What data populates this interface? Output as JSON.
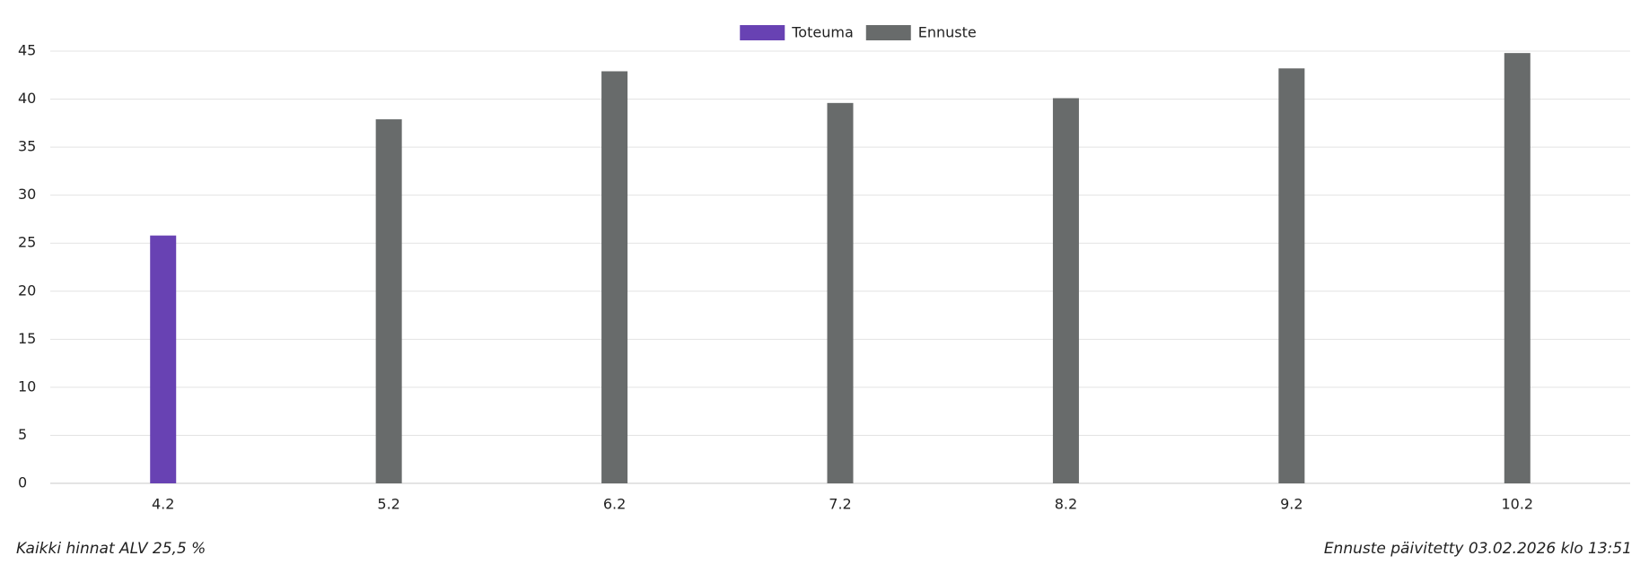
{
  "chart_data": {
    "type": "bar",
    "categories": [
      "4.2",
      "5.2",
      "6.2",
      "7.2",
      "8.2",
      "9.2",
      "10.2"
    ],
    "series": [
      {
        "name": "Toteuma",
        "color": "#6842b3",
        "values": [
          25.8,
          null,
          null,
          null,
          null,
          null,
          null
        ]
      },
      {
        "name": "Ennuste",
        "color": "#686b6b",
        "values": [
          null,
          37.9,
          42.9,
          39.6,
          40.1,
          43.2,
          44.8
        ]
      }
    ],
    "ylim": [
      0,
      45
    ],
    "yticks": [
      0,
      5,
      10,
      15,
      20,
      25,
      30,
      35,
      40,
      45
    ],
    "grid": true,
    "legend": "top",
    "footer_left": "Kaikki hinnat ALV 25,5 %",
    "footer_right": "Ennuste päivitetty 03.02.2026 klo 13:51"
  }
}
